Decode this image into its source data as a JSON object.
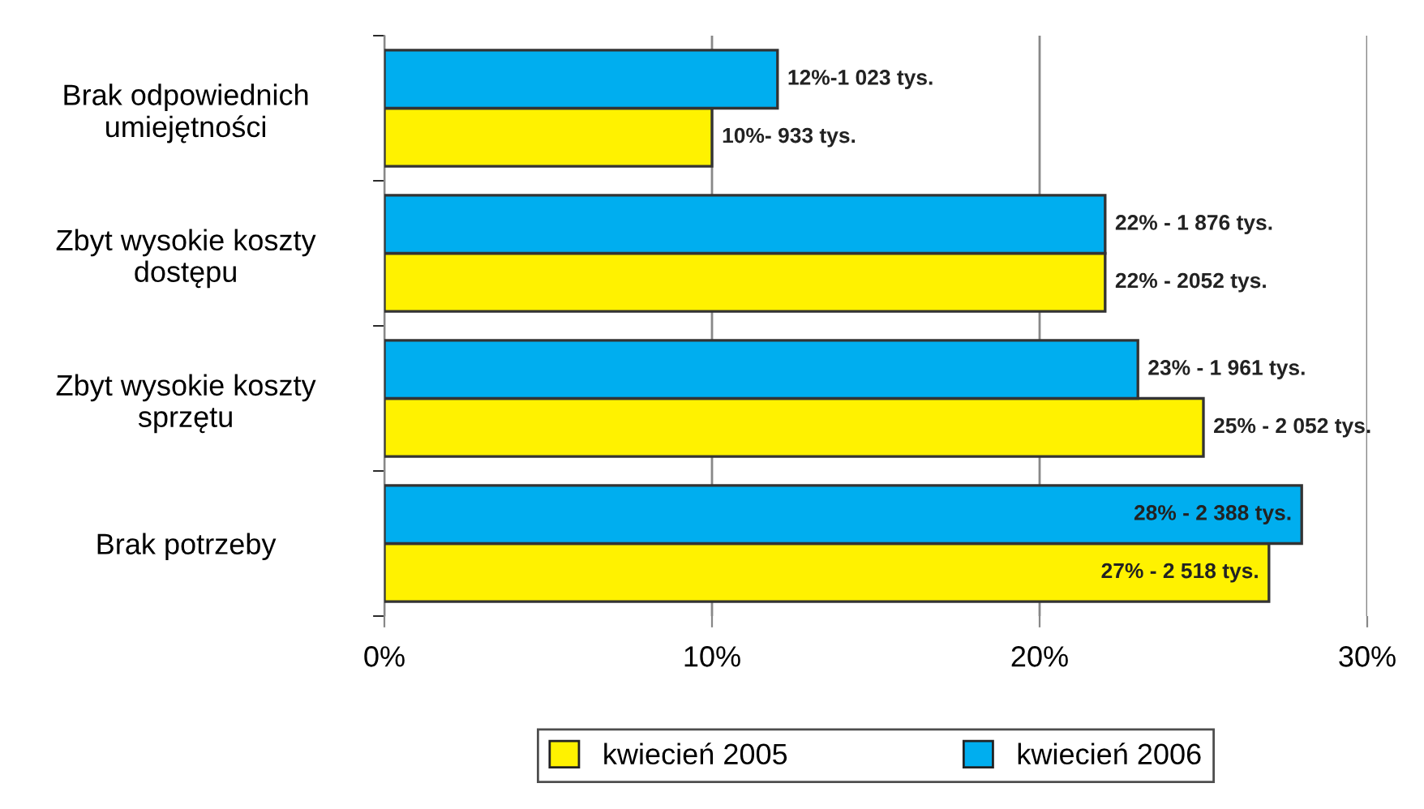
{
  "chart_data": {
    "type": "bar",
    "orientation": "horizontal",
    "categories": [
      "Brak odpowiednich\numiejętności",
      "Zbyt wysokie koszty\ndostępu",
      "Zbyt wysokie koszty\nsprzętu",
      "Brak potrzeby"
    ],
    "series": [
      {
        "name": "kwiecień 2005",
        "color": "#fff200",
        "values": [
          10,
          22,
          25,
          27
        ],
        "value_labels": [
          "10%- 933 tys.",
          "22% - 2052 tys.",
          "25% - 2 052 tys.",
          "27% - 2 518 tys."
        ]
      },
      {
        "name": "kwiecień 2006",
        "color": "#00aeef",
        "values": [
          12,
          22,
          23,
          28
        ],
        "value_labels": [
          "12%-1 023 tys.",
          "22% - 1 876 tys.",
          "23% - 1 961 tys.",
          "28% - 2 388 tys."
        ]
      }
    ],
    "xlim": [
      0,
      30
    ],
    "xticks": [
      {
        "value": 0,
        "label": "0%"
      },
      {
        "value": 10,
        "label": "10%"
      },
      {
        "value": 20,
        "label": "20%"
      },
      {
        "value": 30,
        "label": "30%"
      }
    ],
    "grid": "x",
    "legend": "bottom"
  }
}
